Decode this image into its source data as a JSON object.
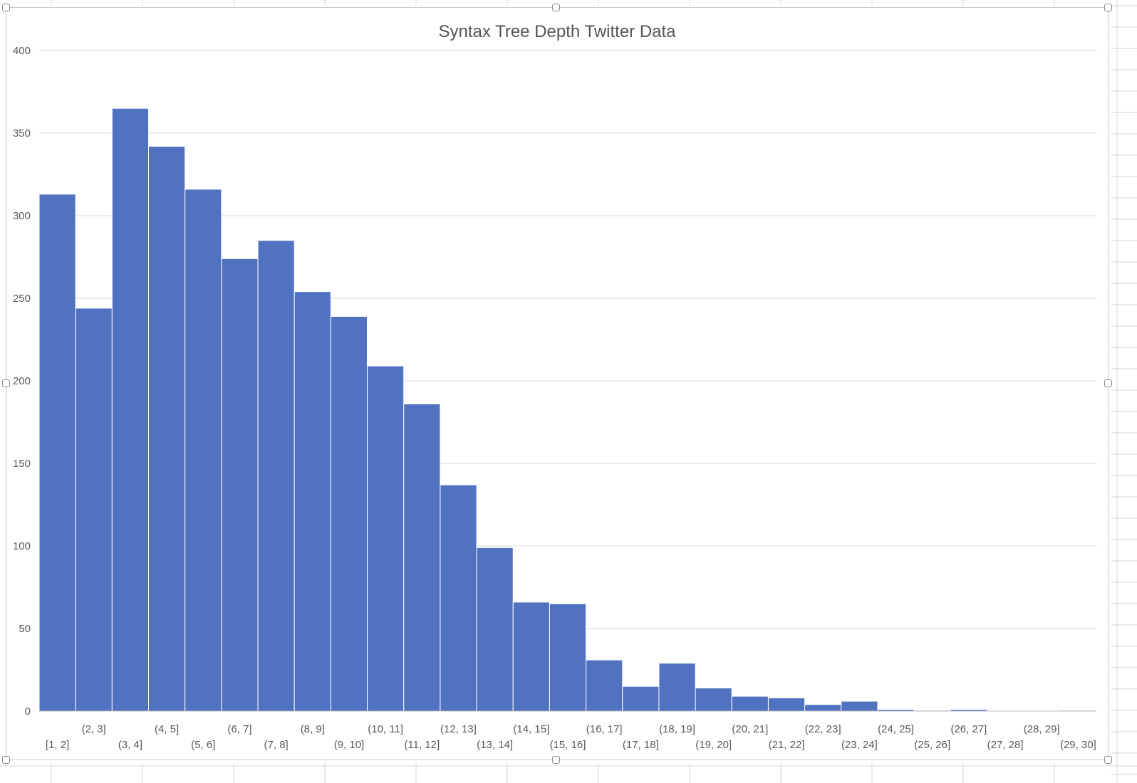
{
  "chart_data": {
    "type": "bar",
    "title": "Syntax Tree Depth Twitter Data",
    "xlabel": "",
    "ylabel": "",
    "ylim": [
      0,
      400
    ],
    "yticks": [
      0,
      50,
      100,
      150,
      200,
      250,
      300,
      350,
      400
    ],
    "grid": true,
    "legend": "none",
    "bar_color": "#5172c0",
    "categories": [
      "[1, 2]",
      "(2, 3]",
      "(3, 4]",
      "(4, 5]",
      "(5, 6]",
      "(6, 7]",
      "(7, 8]",
      "(8, 9]",
      "(9, 10]",
      "(10, 11]",
      "(11, 12]",
      "(12, 13]",
      "(13, 14]",
      "(14, 15]",
      "(15, 16]",
      "(16, 17]",
      "(17, 18]",
      "(18, 19]",
      "(19, 20]",
      "(20, 21]",
      "(21, 22]",
      "(22, 23]",
      "(23, 24]",
      "(24, 25]",
      "(25, 26]",
      "(26, 27]",
      "(27, 28]",
      "(28, 29]",
      "(29, 30]"
    ],
    "values": [
      313,
      244,
      365,
      342,
      316,
      274,
      285,
      254,
      239,
      209,
      186,
      137,
      99,
      66,
      65,
      31,
      15,
      29,
      14,
      9,
      8,
      4,
      6,
      1,
      0.5,
      1,
      0,
      0,
      0.5
    ]
  }
}
